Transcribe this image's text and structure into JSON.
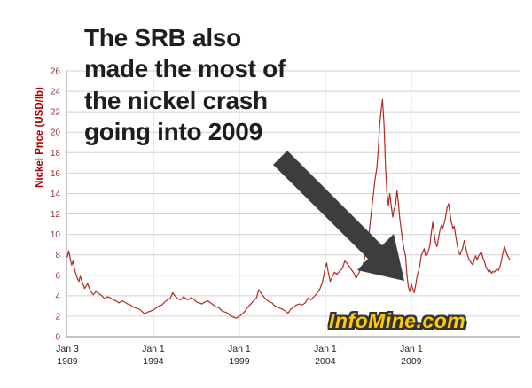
{
  "annotation": {
    "text": "The SRB also\nmade the most of\nthe nickel crash\ngoing into 2009"
  },
  "logo": {
    "text": "InfoMine.com",
    "fill": "#ffcc00",
    "outline": "#333333"
  },
  "chart_data": {
    "type": "line",
    "title": "",
    "xlabel": "",
    "ylabel": "Nickel Price (USD/lb)",
    "ylim": [
      0,
      26
    ],
    "y_tick_step": 2,
    "xlim": [
      1988.95,
      2015.3
    ],
    "grid": true,
    "legend": "none",
    "line_color": "#b22a22",
    "grid_color": "#d2d2d2",
    "axis_color": "#8a8a8a",
    "x_ticks": [
      {
        "year": 1989.0,
        "line1": "Jan 3",
        "line2": "1989",
        "gridline": false
      },
      {
        "year": 1994.0,
        "line1": "Jan 1",
        "line2": "1994",
        "gridline": true
      },
      {
        "year": 1999.0,
        "line1": "Jan 1",
        "line2": "1999",
        "gridline": true
      },
      {
        "year": 2004.0,
        "line1": "Jan 1",
        "line2": "2004",
        "gridline": true
      },
      {
        "year": 2009.0,
        "line1": "Jan 1",
        "line2": "2009",
        "gridline": true
      }
    ],
    "series": [
      {
        "name": "Nickel Price (USD/lb)",
        "points": [
          [
            1989.0,
            7.8
          ],
          [
            1989.08,
            8.4
          ],
          [
            1989.17,
            7.6
          ],
          [
            1989.25,
            7.0
          ],
          [
            1989.33,
            7.4
          ],
          [
            1989.42,
            6.6
          ],
          [
            1989.5,
            6.1
          ],
          [
            1989.58,
            5.7
          ],
          [
            1989.67,
            5.4
          ],
          [
            1989.75,
            5.9
          ],
          [
            1989.83,
            5.5
          ],
          [
            1989.92,
            5.1
          ],
          [
            1990.0,
            4.7
          ],
          [
            1990.17,
            5.2
          ],
          [
            1990.33,
            4.5
          ],
          [
            1990.5,
            4.1
          ],
          [
            1990.67,
            4.4
          ],
          [
            1990.83,
            4.2
          ],
          [
            1991.0,
            4.0
          ],
          [
            1991.17,
            3.7
          ],
          [
            1991.33,
            3.9
          ],
          [
            1991.5,
            3.8
          ],
          [
            1991.67,
            3.6
          ],
          [
            1991.83,
            3.5
          ],
          [
            1992.0,
            3.3
          ],
          [
            1992.17,
            3.5
          ],
          [
            1992.33,
            3.4
          ],
          [
            1992.5,
            3.2
          ],
          [
            1992.67,
            3.1
          ],
          [
            1992.83,
            2.9
          ],
          [
            1993.0,
            2.8
          ],
          [
            1993.17,
            2.7
          ],
          [
            1993.33,
            2.5
          ],
          [
            1993.5,
            2.2
          ],
          [
            1993.67,
            2.4
          ],
          [
            1993.83,
            2.5
          ],
          [
            1994.0,
            2.6
          ],
          [
            1994.17,
            2.8
          ],
          [
            1994.33,
            3.0
          ],
          [
            1994.5,
            3.1
          ],
          [
            1994.67,
            3.4
          ],
          [
            1994.83,
            3.6
          ],
          [
            1995.0,
            3.8
          ],
          [
            1995.13,
            4.3
          ],
          [
            1995.25,
            4.0
          ],
          [
            1995.42,
            3.7
          ],
          [
            1995.58,
            3.6
          ],
          [
            1995.75,
            3.9
          ],
          [
            1995.92,
            3.7
          ],
          [
            1996.0,
            3.6
          ],
          [
            1996.17,
            3.8
          ],
          [
            1996.33,
            3.7
          ],
          [
            1996.5,
            3.4
          ],
          [
            1996.67,
            3.3
          ],
          [
            1996.83,
            3.2
          ],
          [
            1997.0,
            3.4
          ],
          [
            1997.17,
            3.5
          ],
          [
            1997.33,
            3.3
          ],
          [
            1997.5,
            3.1
          ],
          [
            1997.67,
            2.9
          ],
          [
            1997.83,
            2.8
          ],
          [
            1998.0,
            2.5
          ],
          [
            1998.17,
            2.4
          ],
          [
            1998.33,
            2.3
          ],
          [
            1998.5,
            2.0
          ],
          [
            1998.67,
            1.9
          ],
          [
            1998.83,
            1.8
          ],
          [
            1999.0,
            2.0
          ],
          [
            1999.17,
            2.2
          ],
          [
            1999.33,
            2.5
          ],
          [
            1999.5,
            2.9
          ],
          [
            1999.67,
            3.2
          ],
          [
            1999.83,
            3.5
          ],
          [
            2000.0,
            3.8
          ],
          [
            2000.13,
            4.6
          ],
          [
            2000.25,
            4.3
          ],
          [
            2000.42,
            3.9
          ],
          [
            2000.58,
            3.6
          ],
          [
            2000.75,
            3.4
          ],
          [
            2000.92,
            3.3
          ],
          [
            2001.0,
            3.1
          ],
          [
            2001.17,
            2.9
          ],
          [
            2001.33,
            2.8
          ],
          [
            2001.5,
            2.7
          ],
          [
            2001.67,
            2.5
          ],
          [
            2001.83,
            2.3
          ],
          [
            2002.0,
            2.7
          ],
          [
            2002.17,
            2.9
          ],
          [
            2002.33,
            3.1
          ],
          [
            2002.5,
            3.2
          ],
          [
            2002.67,
            3.1
          ],
          [
            2002.83,
            3.3
          ],
          [
            2003.0,
            3.8
          ],
          [
            2003.17,
            3.6
          ],
          [
            2003.33,
            3.9
          ],
          [
            2003.5,
            4.2
          ],
          [
            2003.67,
            4.6
          ],
          [
            2003.83,
            5.3
          ],
          [
            2004.0,
            6.8
          ],
          [
            2004.08,
            7.2
          ],
          [
            2004.17,
            6.3
          ],
          [
            2004.29,
            5.4
          ],
          [
            2004.42,
            5.9
          ],
          [
            2004.54,
            6.3
          ],
          [
            2004.67,
            6.1
          ],
          [
            2004.83,
            6.4
          ],
          [
            2005.0,
            6.7
          ],
          [
            2005.13,
            7.4
          ],
          [
            2005.25,
            7.2
          ],
          [
            2005.42,
            6.8
          ],
          [
            2005.54,
            6.5
          ],
          [
            2005.67,
            6.2
          ],
          [
            2005.79,
            5.7
          ],
          [
            2005.92,
            6.1
          ],
          [
            2006.0,
            6.4
          ],
          [
            2006.17,
            6.8
          ],
          [
            2006.33,
            8.0
          ],
          [
            2006.5,
            9.3
          ],
          [
            2006.63,
            11.5
          ],
          [
            2006.75,
            13.2
          ],
          [
            2006.88,
            15.2
          ],
          [
            2007.0,
            16.5
          ],
          [
            2007.08,
            18.3
          ],
          [
            2007.17,
            20.8
          ],
          [
            2007.25,
            22.2
          ],
          [
            2007.33,
            23.2
          ],
          [
            2007.42,
            20.6
          ],
          [
            2007.5,
            16.8
          ],
          [
            2007.58,
            14.2
          ],
          [
            2007.67,
            12.8
          ],
          [
            2007.75,
            14.0
          ],
          [
            2007.83,
            12.9
          ],
          [
            2007.92,
            11.7
          ],
          [
            2008.0,
            12.5
          ],
          [
            2008.08,
            12.8
          ],
          [
            2008.17,
            14.3
          ],
          [
            2008.25,
            13.1
          ],
          [
            2008.33,
            11.6
          ],
          [
            2008.42,
            10.4
          ],
          [
            2008.5,
            9.4
          ],
          [
            2008.58,
            8.5
          ],
          [
            2008.67,
            7.9
          ],
          [
            2008.75,
            6.0
          ],
          [
            2008.83,
            4.9
          ],
          [
            2008.92,
            4.4
          ],
          [
            2009.0,
            5.2
          ],
          [
            2009.08,
            4.7
          ],
          [
            2009.17,
            4.3
          ],
          [
            2009.25,
            5.0
          ],
          [
            2009.33,
            5.8
          ],
          [
            2009.42,
            6.4
          ],
          [
            2009.5,
            7.0
          ],
          [
            2009.58,
            7.9
          ],
          [
            2009.67,
            8.3
          ],
          [
            2009.75,
            8.6
          ],
          [
            2009.83,
            7.9
          ],
          [
            2009.92,
            8.0
          ],
          [
            2010.0,
            8.4
          ],
          [
            2010.08,
            8.9
          ],
          [
            2010.17,
            10.2
          ],
          [
            2010.25,
            11.2
          ],
          [
            2010.33,
            10.1
          ],
          [
            2010.42,
            9.1
          ],
          [
            2010.5,
            8.8
          ],
          [
            2010.58,
            9.6
          ],
          [
            2010.67,
            10.4
          ],
          [
            2010.75,
            10.9
          ],
          [
            2010.83,
            10.6
          ],
          [
            2010.92,
            11.1
          ],
          [
            2011.0,
            11.7
          ],
          [
            2011.08,
            12.6
          ],
          [
            2011.17,
            13.0
          ],
          [
            2011.25,
            12.1
          ],
          [
            2011.33,
            11.2
          ],
          [
            2011.42,
            10.6
          ],
          [
            2011.5,
            10.8
          ],
          [
            2011.58,
            9.9
          ],
          [
            2011.67,
            9.0
          ],
          [
            2011.75,
            8.3
          ],
          [
            2011.83,
            8.0
          ],
          [
            2011.92,
            8.4
          ],
          [
            2012.0,
            8.7
          ],
          [
            2012.08,
            9.4
          ],
          [
            2012.17,
            8.7
          ],
          [
            2012.25,
            8.1
          ],
          [
            2012.33,
            7.7
          ],
          [
            2012.42,
            7.4
          ],
          [
            2012.5,
            7.2
          ],
          [
            2012.58,
            7.0
          ],
          [
            2012.67,
            7.6
          ],
          [
            2012.75,
            7.9
          ],
          [
            2012.83,
            7.5
          ],
          [
            2012.92,
            7.9
          ],
          [
            2013.0,
            8.1
          ],
          [
            2013.08,
            8.3
          ],
          [
            2013.17,
            7.7
          ],
          [
            2013.25,
            7.4
          ],
          [
            2013.33,
            6.9
          ],
          [
            2013.42,
            6.6
          ],
          [
            2013.5,
            6.3
          ],
          [
            2013.58,
            6.5
          ],
          [
            2013.67,
            6.2
          ],
          [
            2013.75,
            6.4
          ],
          [
            2013.83,
            6.3
          ],
          [
            2013.92,
            6.5
          ],
          [
            2014.0,
            6.6
          ],
          [
            2014.08,
            6.5
          ],
          [
            2014.17,
            6.9
          ],
          [
            2014.25,
            7.5
          ],
          [
            2014.33,
            8.2
          ],
          [
            2014.42,
            8.8
          ],
          [
            2014.5,
            8.4
          ],
          [
            2014.58,
            8.0
          ],
          [
            2014.67,
            7.7
          ],
          [
            2014.75,
            7.5
          ]
        ]
      }
    ]
  }
}
